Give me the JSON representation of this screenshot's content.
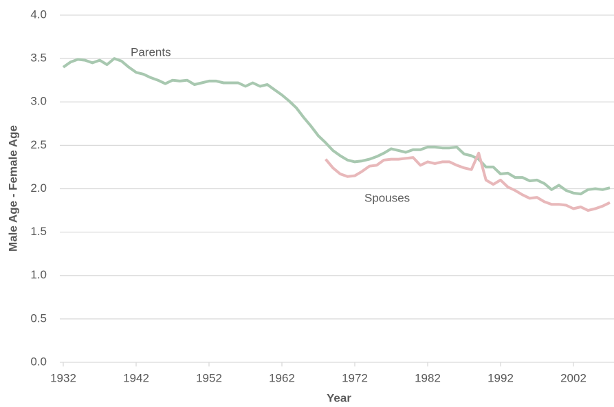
{
  "chart_data": {
    "type": "line",
    "xlabel": "Year",
    "ylabel": "Male Age - Female Age",
    "x": [
      1932,
      1933,
      1934,
      1935,
      1936,
      1937,
      1938,
      1939,
      1940,
      1941,
      1942,
      1943,
      1944,
      1945,
      1946,
      1947,
      1948,
      1949,
      1950,
      1951,
      1952,
      1953,
      1954,
      1955,
      1956,
      1957,
      1958,
      1959,
      1960,
      1961,
      1962,
      1963,
      1964,
      1965,
      1966,
      1967,
      1968,
      1969,
      1970,
      1971,
      1972,
      1973,
      1974,
      1975,
      1976,
      1977,
      1978,
      1979,
      1980,
      1981,
      1982,
      1983,
      1984,
      1985,
      1986,
      1987,
      1988,
      1989,
      1990,
      1991,
      1992,
      1993,
      1994,
      1995,
      1996,
      1997,
      1998,
      1999,
      2000,
      2001,
      2002,
      2003,
      2004,
      2005,
      2006,
      2007
    ],
    "series": [
      {
        "name": "Parents",
        "color": "#a8c8b0",
        "values": [
          3.4,
          3.46,
          3.49,
          3.48,
          3.45,
          3.48,
          3.43,
          3.5,
          3.47,
          3.4,
          3.34,
          3.32,
          3.28,
          3.25,
          3.21,
          3.25,
          3.24,
          3.25,
          3.2,
          3.22,
          3.24,
          3.24,
          3.22,
          3.22,
          3.22,
          3.18,
          3.22,
          3.18,
          3.2,
          3.14,
          3.08,
          3.01,
          2.93,
          2.82,
          2.72,
          2.61,
          2.53,
          2.44,
          2.38,
          2.33,
          2.31,
          2.32,
          2.34,
          2.37,
          2.41,
          2.46,
          2.44,
          2.42,
          2.45,
          2.45,
          2.48,
          2.48,
          2.47,
          2.47,
          2.48,
          2.4,
          2.38,
          2.34,
          2.25,
          2.25,
          2.17,
          2.18,
          2.13,
          2.13,
          2.09,
          2.1,
          2.06,
          1.99,
          2.04,
          1.98,
          1.95,
          1.94,
          1.99,
          2.0,
          1.99,
          2.01
        ]
      },
      {
        "name": "Spouses",
        "color": "#e8b8ba",
        "values": [
          null,
          null,
          null,
          null,
          null,
          null,
          null,
          null,
          null,
          null,
          null,
          null,
          null,
          null,
          null,
          null,
          null,
          null,
          null,
          null,
          null,
          null,
          null,
          null,
          null,
          null,
          null,
          null,
          null,
          null,
          null,
          null,
          null,
          null,
          null,
          null,
          2.34,
          2.24,
          2.17,
          2.14,
          2.15,
          2.2,
          2.26,
          2.27,
          2.33,
          2.34,
          2.34,
          2.35,
          2.36,
          2.27,
          2.31,
          2.29,
          2.31,
          2.31,
          2.27,
          2.24,
          2.22,
          2.41,
          2.1,
          2.05,
          2.1,
          2.02,
          1.98,
          1.93,
          1.89,
          1.9,
          1.85,
          1.82,
          1.82,
          1.81,
          1.77,
          1.79,
          1.75,
          1.77,
          1.8,
          1.84
        ]
      }
    ],
    "xlim": [
      1932,
      2007
    ],
    "xticks": [
      1932,
      1942,
      1952,
      1962,
      1972,
      1982,
      1992,
      2002
    ],
    "ylim": [
      0,
      4
    ],
    "yticks": [
      {
        "value": 0,
        "label": "0.0"
      },
      0.5,
      {
        "value": 1,
        "label": "1.0"
      },
      1.5,
      {
        "value": 2,
        "label": "2.0"
      },
      2.5,
      {
        "value": 3,
        "label": "3.0"
      },
      3.5,
      {
        "value": 4,
        "label": "4.0"
      }
    ],
    "grid": true
  }
}
